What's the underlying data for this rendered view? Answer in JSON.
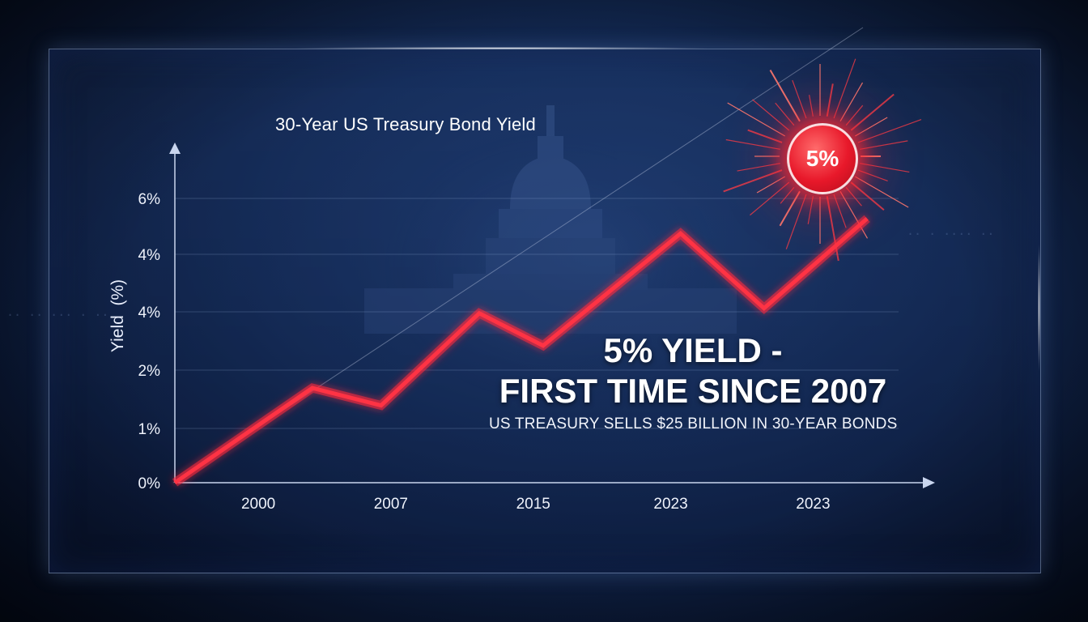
{
  "chart_data": {
    "type": "line",
    "title": "30-Year US Treasury Bond Yield",
    "ylabel": "Yield  (%)",
    "xlabel": "",
    "y_tick_labels": [
      "0%",
      "1%",
      "2%",
      "4%",
      "4%",
      "6%"
    ],
    "x_tick_labels": [
      "2000",
      "2007",
      "2015",
      "2023",
      "2023"
    ],
    "series": [
      {
        "color": "#ff3344",
        "points": [
          {
            "x": 0.0,
            "y": 0.0
          },
          {
            "x": 1.4,
            "y": 1.9
          },
          {
            "x": 2.1,
            "y": 1.55
          },
          {
            "x": 3.1,
            "y": 3.4
          },
          {
            "x": 3.75,
            "y": 2.75
          },
          {
            "x": 5.15,
            "y": 5.0
          },
          {
            "x": 6.0,
            "y": 3.5
          },
          {
            "x": 7.05,
            "y": 5.3
          }
        ]
      }
    ],
    "x_tick_positions": [
      0.85,
      2.2,
      3.65,
      5.05,
      6.5
    ],
    "xlim": [
      0,
      7.7
    ],
    "ylim": [
      0,
      6.5
    ],
    "grid": true,
    "annotation": "5%",
    "highlight_color": "#e8182a"
  },
  "headline": {
    "line1": "5% YIELD -",
    "line2": "FIRST TIME SINCE 2007"
  },
  "subheadline": "US TREASURY SELLS $25 BILLION IN 30-YEAR BONDS"
}
